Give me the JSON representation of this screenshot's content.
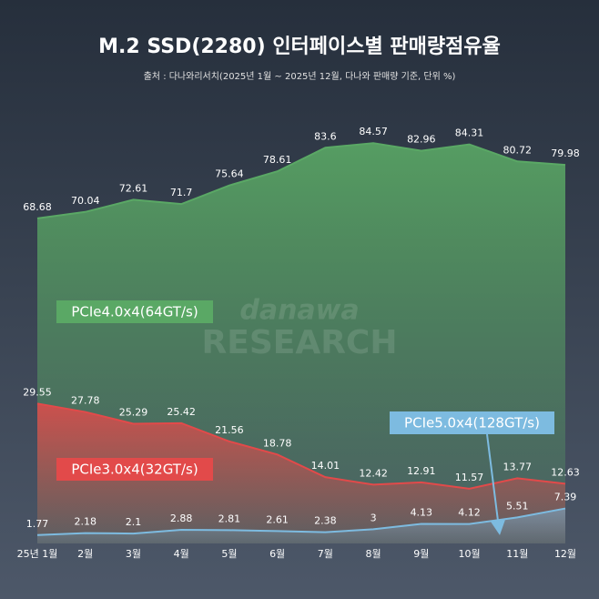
{
  "chart_data": {
    "type": "area",
    "title": "M.2 SSD(2280) 인터페이스별 판매량점유율",
    "subtitle": "출처 : 다나와리서치(2025년 1월 ~ 2025년 12월, 다나와 판매량 기준, 단위 %)",
    "watermark": [
      "danawa",
      "RESEARCH"
    ],
    "categories": [
      "25년 1월",
      "2월",
      "3월",
      "4월",
      "5월",
      "6월",
      "7월",
      "8월",
      "9월",
      "10월",
      "11월",
      "12월"
    ],
    "ylim": [
      0,
      100
    ],
    "series": [
      {
        "name": "PCIe4.0x4(64GT/s)",
        "color": "#5aa865",
        "values": [
          68.68,
          70.04,
          72.61,
          71.7,
          75.64,
          78.61,
          83.6,
          84.57,
          82.96,
          84.31,
          80.72,
          79.98
        ]
      },
      {
        "name": "PCIe3.0x4(32GT/s)",
        "color": "#e24a4a",
        "values": [
          29.55,
          27.78,
          25.29,
          25.42,
          21.56,
          18.78,
          14.01,
          12.42,
          12.91,
          11.57,
          13.77,
          12.63
        ]
      },
      {
        "name": "PCIe5.0x4(128GT/s)",
        "color": "#7dbbe0",
        "values": [
          1.77,
          2.18,
          2.1,
          2.88,
          2.81,
          2.61,
          2.38,
          3,
          4.13,
          4.12,
          5.51,
          7.39
        ]
      }
    ]
  }
}
